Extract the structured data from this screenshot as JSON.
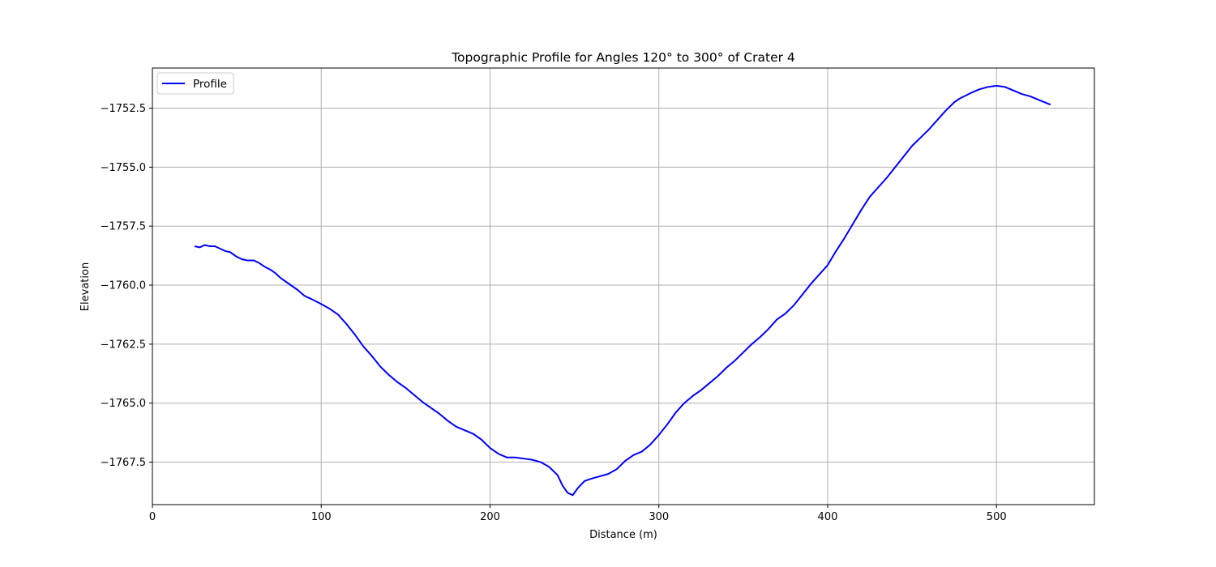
{
  "chart_data": {
    "type": "line",
    "title": "Topographic Profile for Angles 120° to 300° of Crater 4",
    "xlabel": "Distance (m)",
    "ylabel": "Elevation",
    "xlim": [
      0,
      558
    ],
    "ylim": [
      -1769.3,
      -1750.8
    ],
    "xticks": [
      0,
      100,
      200,
      300,
      400,
      500
    ],
    "xtick_labels": [
      "0",
      "100",
      "200",
      "300",
      "400",
      "500"
    ],
    "yticks": [
      -1767.5,
      -1765.0,
      -1762.5,
      -1760.0,
      -1757.5,
      -1755.0,
      -1752.5
    ],
    "ytick_labels": [
      "−1767.5",
      "−1765.0",
      "−1762.5",
      "−1760.0",
      "−1757.5",
      "−1755.0",
      "−1752.5"
    ],
    "grid": true,
    "legend": {
      "position": "top-left",
      "entries": [
        "Profile"
      ]
    },
    "series": [
      {
        "name": "Profile",
        "color": "#0000ff",
        "x": [
          25,
          28,
          31,
          34,
          37,
          40,
          43,
          46,
          50,
          53,
          56,
          60,
          63,
          66,
          70,
          73,
          76,
          80,
          83,
          86,
          90,
          93,
          96,
          100,
          105,
          110,
          115,
          120,
          125,
          130,
          135,
          140,
          145,
          150,
          155,
          160,
          165,
          170,
          175,
          180,
          185,
          190,
          195,
          200,
          205,
          210,
          215,
          220,
          225,
          230,
          235,
          240,
          243,
          246,
          249,
          252,
          256,
          260,
          265,
          270,
          275,
          280,
          285,
          290,
          295,
          300,
          305,
          310,
          315,
          320,
          325,
          330,
          335,
          340,
          345,
          350,
          355,
          360,
          365,
          370,
          375,
          380,
          385,
          390,
          395,
          400,
          405,
          410,
          415,
          420,
          425,
          430,
          435,
          440,
          445,
          450,
          455,
          460,
          465,
          470,
          475,
          478,
          485,
          490,
          495,
          500,
          505,
          510,
          515,
          520,
          525,
          532
        ],
        "y": [
          -1758.35,
          -1758.4,
          -1758.3,
          -1758.35,
          -1758.35,
          -1758.45,
          -1758.55,
          -1758.6,
          -1758.8,
          -1758.9,
          -1758.95,
          -1758.95,
          -1759.05,
          -1759.2,
          -1759.35,
          -1759.5,
          -1759.7,
          -1759.9,
          -1760.05,
          -1760.2,
          -1760.45,
          -1760.55,
          -1760.65,
          -1760.8,
          -1761.0,
          -1761.25,
          -1761.65,
          -1762.1,
          -1762.6,
          -1763.0,
          -1763.45,
          -1763.8,
          -1764.1,
          -1764.35,
          -1764.65,
          -1764.95,
          -1765.2,
          -1765.45,
          -1765.75,
          -1766.0,
          -1766.15,
          -1766.3,
          -1766.55,
          -1766.9,
          -1767.15,
          -1767.3,
          -1767.3,
          -1767.35,
          -1767.4,
          -1767.5,
          -1767.7,
          -1768.05,
          -1768.5,
          -1768.8,
          -1768.9,
          -1768.6,
          -1768.3,
          -1768.2,
          -1768.1,
          -1768.0,
          -1767.8,
          -1767.45,
          -1767.2,
          -1767.05,
          -1766.75,
          -1766.35,
          -1765.9,
          -1765.4,
          -1765.0,
          -1764.7,
          -1764.45,
          -1764.15,
          -1763.85,
          -1763.5,
          -1763.2,
          -1762.85,
          -1762.5,
          -1762.2,
          -1761.85,
          -1761.45,
          -1761.2,
          -1760.85,
          -1760.4,
          -1759.95,
          -1759.55,
          -1759.15,
          -1758.55,
          -1758.0,
          -1757.4,
          -1756.8,
          -1756.25,
          -1755.85,
          -1755.45,
          -1755.0,
          -1754.55,
          -1754.1,
          -1753.75,
          -1753.4,
          -1753.0,
          -1752.6,
          -1752.25,
          -1752.1,
          -1751.85,
          -1751.7,
          -1751.6,
          -1751.55,
          -1751.6,
          -1751.75,
          -1751.9,
          -1752.0,
          -1752.15,
          -1752.35
        ]
      }
    ]
  }
}
